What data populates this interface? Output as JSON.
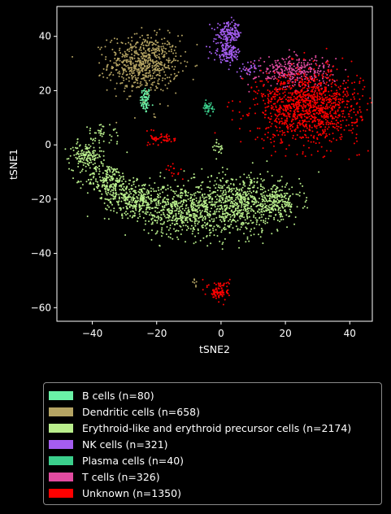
{
  "chart_data": {
    "type": "scatter",
    "title": "",
    "xlabel": "tSNE2",
    "ylabel": "tSNE1",
    "xlim": [
      -51,
      47
    ],
    "ylim": [
      -65,
      51
    ],
    "xticks": [
      -40,
      -20,
      0,
      20,
      40
    ],
    "yticks": [
      -60,
      -40,
      -20,
      0,
      20,
      40
    ],
    "xtick_labels": [
      "−40",
      "−20",
      "0",
      "20",
      "40"
    ],
    "ytick_labels": [
      "−60",
      "−40",
      "−20",
      "0",
      "20",
      "40"
    ],
    "grid": false,
    "legend_position": "below",
    "series": [
      {
        "name": "B cells (n=80)",
        "color": "#6af2a6",
        "n": 80,
        "clusters": [
          {
            "cx": -23.5,
            "cy": 16.5,
            "sx": 0.8,
            "sy": 2.5,
            "w": 1
          }
        ]
      },
      {
        "name": "Dendritic cells (n=658)",
        "color": "#b5a463",
        "n": 658,
        "clusters": [
          {
            "cx": -24,
            "cy": 30,
            "sx": 5.5,
            "sy": 5.2,
            "w": 0.985
          },
          {
            "cx": -8,
            "cy": -51,
            "sx": 0.6,
            "sy": 0.8,
            "w": 0.01
          },
          {
            "cx": -20.5,
            "cy": 10.5,
            "sx": 0.5,
            "sy": 0.5,
            "w": 0.005
          }
        ]
      },
      {
        "name": "Erythroid-like and erythroid precursor cells (n=2174)",
        "color": "#b9ee8c",
        "n": 2174,
        "clusters": [
          {
            "cx": -42,
            "cy": -4,
            "sx": 2.5,
            "sy": 2.5,
            "w": 0.07
          },
          {
            "cx": -35,
            "cy": -13,
            "sx": 3.5,
            "sy": 3,
            "w": 0.1
          },
          {
            "cx": -27,
            "cy": -20,
            "sx": 4.5,
            "sy": 3,
            "w": 0.15
          },
          {
            "cx": -12,
            "cy": -24,
            "sx": 6,
            "sy": 5,
            "w": 0.25
          },
          {
            "cx": 5,
            "cy": -22,
            "sx": 7,
            "sy": 5.5,
            "w": 0.3
          },
          {
            "cx": 17,
            "cy": -21,
            "sx": 4,
            "sy": 3,
            "w": 0.1
          },
          {
            "cx": -37,
            "cy": 4,
            "sx": 3,
            "sy": 1.8,
            "w": 0.02
          },
          {
            "cx": -1,
            "cy": -1.5,
            "sx": 0.9,
            "sy": 2,
            "w": 0.01
          }
        ]
      },
      {
        "name": "NK cells (n=321)",
        "color": "#a45df0",
        "n": 321,
        "clusters": [
          {
            "cx": 2.5,
            "cy": 41,
            "sx": 2,
            "sy": 2,
            "w": 0.5
          },
          {
            "cx": 2,
            "cy": 34,
            "sx": 2.2,
            "sy": 1.8,
            "w": 0.4
          },
          {
            "cx": 9,
            "cy": 28,
            "sx": 1.2,
            "sy": 1.2,
            "w": 0.1
          }
        ]
      },
      {
        "name": "Plasma cells (n=40)",
        "color": "#3bcf8c",
        "n": 40,
        "clusters": [
          {
            "cx": -4,
            "cy": 13.5,
            "sx": 0.8,
            "sy": 1,
            "w": 1
          }
        ]
      },
      {
        "name": "T cells (n=326)",
        "color": "#e24ba0",
        "n": 326,
        "clusters": [
          {
            "cx": 23,
            "cy": 27,
            "sx": 6,
            "sy": 3,
            "w": 1
          }
        ]
      },
      {
        "name": "Unknown (n=1350)",
        "color": "#ff0000",
        "n": 1350,
        "clusters": [
          {
            "cx": 27,
            "cy": 14,
            "sx": 8,
            "sy": 6.5,
            "w": 0.88
          },
          {
            "cx": -18,
            "cy": 2.5,
            "sx": 2,
            "sy": 1.3,
            "w": 0.04
          },
          {
            "cx": -0.5,
            "cy": -54,
            "sx": 1.6,
            "sy": 2,
            "w": 0.07
          },
          {
            "cx": -14,
            "cy": -10,
            "sx": 1.5,
            "sy": 2,
            "w": 0.01
          }
        ]
      }
    ]
  }
}
